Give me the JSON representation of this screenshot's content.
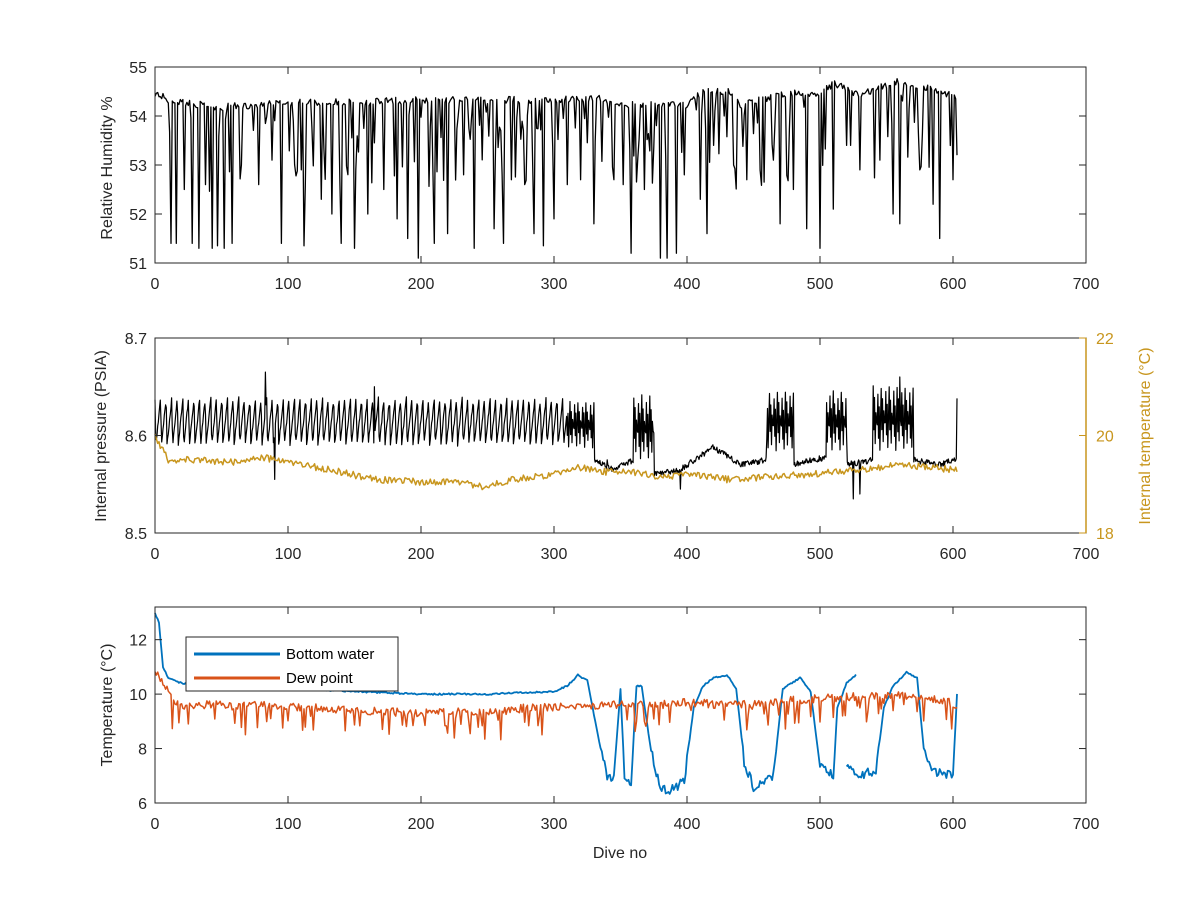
{
  "colors": {
    "black": "#000000",
    "gold": "#C8961E",
    "blue": "#0072BD",
    "orange": "#D95319",
    "axis": "#262626"
  },
  "chart_data": [
    {
      "type": "line",
      "xlabel": "",
      "ylabel": "Relative Humidity %",
      "xlim": [
        0,
        700
      ],
      "ylim": [
        51,
        55
      ],
      "xticks": [
        0,
        100,
        200,
        300,
        400,
        500,
        600,
        700
      ],
      "yticks": [
        51,
        52,
        53,
        54,
        55
      ],
      "grid": false,
      "series": [
        {
          "color": "#000000",
          "baseline": [
            [
              0,
              54.55
            ],
            [
              10,
              54.4
            ],
            [
              50,
              54.25
            ],
            [
              100,
              54.35
            ],
            [
              150,
              54.35
            ],
            [
              200,
              54.4
            ],
            [
              230,
              54.4
            ],
            [
              300,
              54.4
            ],
            [
              330,
              54.45
            ],
            [
              350,
              54.3
            ],
            [
              400,
              54.3
            ],
            [
              410,
              54.55
            ],
            [
              430,
              54.6
            ],
            [
              440,
              54.3
            ],
            [
              480,
              54.55
            ],
            [
              500,
              54.5
            ],
            [
              510,
              54.75
            ],
            [
              530,
              54.5
            ],
            [
              560,
              54.8
            ],
            [
              600,
              54.5
            ],
            [
              603,
              54.4
            ]
          ],
          "dips": [
            [
              12,
              51.4
            ],
            [
              16,
              51.4
            ],
            [
              22,
              52.5
            ],
            [
              28,
              51.4
            ],
            [
              33,
              51.3
            ],
            [
              38,
              52.6
            ],
            [
              43,
              51.3
            ],
            [
              47,
              51.35
            ],
            [
              52,
              51.3
            ],
            [
              58,
              51.4
            ],
            [
              65,
              53.0
            ],
            [
              78,
              52.6
            ],
            [
              88,
              53.1
            ],
            [
              95,
              51.4
            ],
            [
              112,
              51.35
            ],
            [
              125,
              52.3
            ],
            [
              133,
              52.0
            ],
            [
              140,
              51.4
            ],
            [
              150,
              51.3
            ],
            [
              160,
              52.0
            ],
            [
              172,
              52.5
            ],
            [
              182,
              51.9
            ],
            [
              190,
              51.5
            ],
            [
              198,
              51.1
            ],
            [
              210,
              51.4
            ],
            [
              220,
              51.6
            ],
            [
              232,
              52.8
            ],
            [
              240,
              51.3
            ],
            [
              255,
              51.7
            ],
            [
              262,
              51.4
            ],
            [
              268,
              52.7
            ],
            [
              278,
              52.6
            ],
            [
              285,
              51.6
            ],
            [
              292,
              51.35
            ],
            [
              300,
              51.9
            ],
            [
              310,
              52.6
            ],
            [
              320,
              52.7
            ],
            [
              330,
              51.8
            ],
            [
              345,
              52.7
            ],
            [
              352,
              52.6
            ],
            [
              358,
              51.2
            ],
            [
              368,
              52.5
            ],
            [
              380,
              51.1
            ],
            [
              385,
              51.1
            ],
            [
              392,
              51.2
            ],
            [
              398,
              52.8
            ],
            [
              410,
              52.3
            ],
            [
              415,
              51.6
            ],
            [
              435,
              53.0
            ],
            [
              445,
              52.7
            ],
            [
              455,
              52.9
            ],
            [
              465,
              53.1
            ],
            [
              470,
              51.8
            ],
            [
              480,
              52.5
            ],
            [
              490,
              51.7
            ],
            [
              500,
              51.3
            ],
            [
              510,
              52.1
            ],
            [
              520,
              53.4
            ],
            [
              530,
              52.9
            ],
            [
              545,
              53.1
            ],
            [
              555,
              52.0
            ],
            [
              560,
              51.8
            ],
            [
              575,
              52.9
            ],
            [
              585,
              52.2
            ],
            [
              590,
              51.5
            ],
            [
              600,
              52.7
            ],
            [
              603,
              53.2
            ]
          ]
        }
      ]
    },
    {
      "type": "line",
      "xlabel": "",
      "ylabel": "Internal pressure (PSIA)",
      "ylabel_right": "Internal temperature (°C)",
      "xlim": [
        0,
        700
      ],
      "ylim": [
        8.5,
        8.7
      ],
      "ylim_right": [
        18,
        22
      ],
      "xticks": [
        0,
        100,
        200,
        300,
        400,
        500,
        600,
        700
      ],
      "yticks": [
        8.5,
        8.6,
        8.7
      ],
      "yticklabels": [
        "8.5",
        "8.6",
        "8.7"
      ],
      "yticks_right": [
        18,
        20,
        22
      ],
      "grid": false,
      "series": [
        {
          "axis": "left",
          "color": "#000000",
          "segments": [
            [
              0,
              310,
              8.59,
              8.638
            ],
            [
              310,
              330,
              8.588,
              8.635
            ],
            [
              360,
              375,
              8.575,
              8.64
            ],
            [
              460,
              480,
              8.585,
              8.645
            ],
            [
              505,
              520,
              8.585,
              8.645
            ],
            [
              540,
              570,
              8.585,
              8.65
            ]
          ],
          "baseline": [
            [
              330,
              8.575
            ],
            [
              345,
              8.565
            ],
            [
              360,
              8.575
            ],
            [
              375,
              8.56
            ],
            [
              395,
              8.565
            ],
            [
              420,
              8.588
            ],
            [
              440,
              8.57
            ],
            [
              460,
              8.575
            ],
            [
              480,
              8.57
            ],
            [
              505,
              8.578
            ],
            [
              520,
              8.57
            ],
            [
              540,
              8.575
            ],
            [
              570,
              8.575
            ],
            [
              590,
              8.57
            ],
            [
              600,
              8.575
            ],
            [
              603,
              8.575
            ]
          ],
          "spikes": [
            [
              83,
              8.665
            ],
            [
              90,
              8.555
            ],
            [
              165,
              8.65
            ],
            [
              340,
              8.575
            ],
            [
              395,
              8.545
            ],
            [
              525,
              8.535
            ],
            [
              530,
              8.54
            ],
            [
              560,
              8.66
            ],
            [
              603,
              8.638
            ]
          ]
        },
        {
          "axis": "right",
          "color": "#C8961E",
          "points": [
            [
              0,
              20.0
            ],
            [
              10,
              19.5
            ],
            [
              30,
              19.5
            ],
            [
              60,
              19.45
            ],
            [
              80,
              19.55
            ],
            [
              110,
              19.4
            ],
            [
              140,
              19.25
            ],
            [
              165,
              19.1
            ],
            [
              200,
              19.05
            ],
            [
              230,
              19.05
            ],
            [
              245,
              18.95
            ],
            [
              270,
              19.1
            ],
            [
              300,
              19.2
            ],
            [
              318,
              19.35
            ],
            [
              340,
              19.25
            ],
            [
              360,
              19.25
            ],
            [
              380,
              19.15
            ],
            [
              400,
              19.2
            ],
            [
              430,
              19.1
            ],
            [
              460,
              19.15
            ],
            [
              490,
              19.2
            ],
            [
              510,
              19.25
            ],
            [
              530,
              19.3
            ],
            [
              560,
              19.4
            ],
            [
              580,
              19.35
            ],
            [
              603,
              19.3
            ]
          ]
        }
      ]
    },
    {
      "type": "line",
      "xlabel": "Dive no",
      "ylabel": "Temperature (°C)",
      "xlim": [
        0,
        700
      ],
      "ylim": [
        6,
        13.2
      ],
      "xticks": [
        0,
        100,
        200,
        300,
        400,
        500,
        600,
        700
      ],
      "yticks": [
        6,
        8,
        10,
        12
      ],
      "grid": false,
      "legend_position": "top-left",
      "series": [
        {
          "name": "Bottom water",
          "color": "#0072BD",
          "points": [
            [
              0,
              13.0
            ],
            [
              3,
              12.6
            ],
            [
              6,
              11.0
            ],
            [
              10,
              10.6
            ],
            [
              20,
              10.4
            ],
            [
              50,
              10.3
            ],
            [
              100,
              10.2
            ],
            [
              150,
              10.1
            ],
            [
              200,
              10.0
            ],
            [
              250,
              10.0
            ],
            [
              300,
              10.1
            ],
            [
              310,
              10.3
            ],
            [
              318,
              10.7
            ],
            [
              325,
              10.5
            ],
            [
              335,
              8.0
            ],
            [
              340,
              7.0
            ],
            [
              345,
              6.9
            ],
            [
              350,
              10.2
            ],
            [
              353,
              7.0
            ],
            [
              358,
              6.7
            ],
            [
              362,
              10.3
            ],
            [
              366,
              10.3
            ],
            [
              372,
              8.2
            ],
            [
              380,
              6.5
            ],
            [
              390,
              6.5
            ],
            [
              398,
              6.8
            ],
            [
              405,
              9.5
            ],
            [
              412,
              10.3
            ],
            [
              420,
              10.6
            ],
            [
              430,
              10.7
            ],
            [
              437,
              10.2
            ],
            [
              443,
              7.5
            ],
            [
              450,
              6.6
            ],
            [
              465,
              7.0
            ],
            [
              472,
              10.2
            ],
            [
              485,
              10.6
            ],
            [
              493,
              10.1
            ],
            [
              500,
              7.3
            ],
            [
              510,
              7.0
            ],
            [
              513,
              9.5
            ],
            [
              520,
              10.4
            ],
            [
              527,
              10.7
            ],
            [
              533,
              null
            ],
            [
              520,
              7.5
            ],
            [
              530,
              7.0
            ],
            [
              542,
              7.2
            ],
            [
              548,
              9.5
            ],
            [
              555,
              10.3
            ],
            [
              565,
              10.8
            ],
            [
              573,
              10.6
            ],
            [
              578,
              8.0
            ],
            [
              585,
              7.2
            ],
            [
              600,
              7.0
            ],
            [
              603,
              10.0
            ]
          ]
        },
        {
          "name": "Dew point",
          "color": "#D95319",
          "points": [
            [
              0,
              10.9
            ],
            [
              5,
              10.5
            ],
            [
              15,
              9.6
            ],
            [
              40,
              9.6
            ],
            [
              80,
              9.6
            ],
            [
              120,
              9.5
            ],
            [
              150,
              9.4
            ],
            [
              200,
              9.3
            ],
            [
              230,
              9.4
            ],
            [
              250,
              9.3
            ],
            [
              280,
              9.5
            ],
            [
              310,
              9.55
            ],
            [
              330,
              9.6
            ],
            [
              350,
              9.6
            ],
            [
              380,
              9.6
            ],
            [
              400,
              9.7
            ],
            [
              430,
              9.6
            ],
            [
              460,
              9.7
            ],
            [
              490,
              9.8
            ],
            [
              520,
              9.9
            ],
            [
              560,
              9.95
            ],
            [
              590,
              9.8
            ],
            [
              603,
              9.6
            ]
          ]
        }
      ]
    }
  ]
}
